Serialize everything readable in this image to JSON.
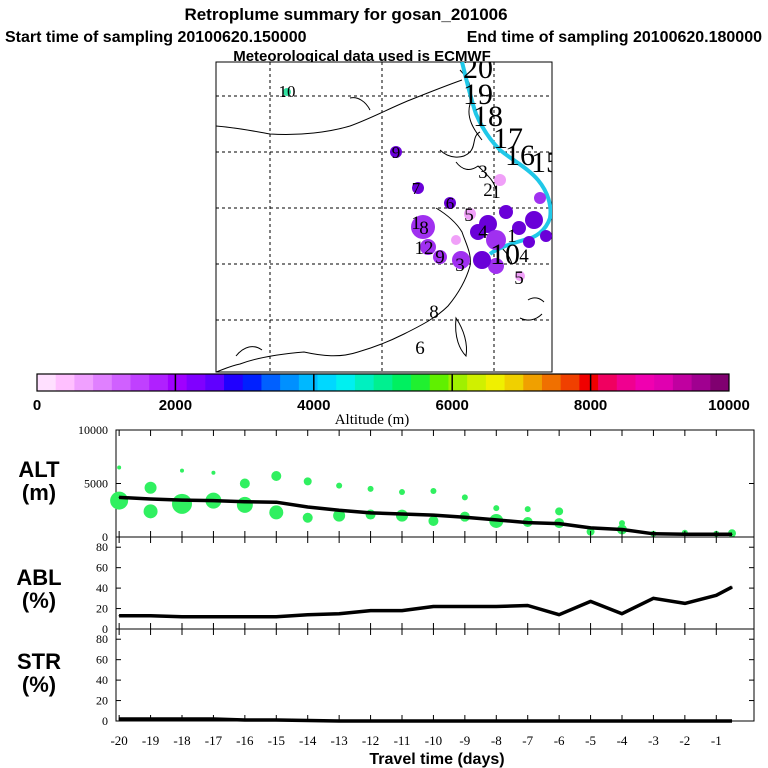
{
  "header": {
    "title": "Retroplume summary for gosan_201006",
    "start_label": "Start time of sampling 20100620.150000",
    "end_label": "End time of sampling 20100620.180000",
    "met_label": "Meteorological data used is ECMWF"
  },
  "colorbar": {
    "title": "Altitude (m)",
    "ticks": [
      "0",
      "2000",
      "4000",
      "6000",
      "8000",
      "10000"
    ],
    "range": [
      0,
      10000
    ],
    "colors": [
      "#ffe0ff",
      "#ffc0ff",
      "#f0a0ff",
      "#e080ff",
      "#d060ff",
      "#c040ff",
      "#b020ff",
      "#a000ff",
      "#8000ff",
      "#6000ff",
      "#2000ff",
      "#0020ff",
      "#0060ff",
      "#0090ff",
      "#00b8ff",
      "#00d8ff",
      "#00f0f0",
      "#00f0c0",
      "#00f090",
      "#00f060",
      "#20f030",
      "#60f000",
      "#a0f000",
      "#d0f000",
      "#f0f000",
      "#f0d000",
      "#f0a000",
      "#f07000",
      "#f04000",
      "#f00000",
      "#f00060",
      "#f00090",
      "#f000b0",
      "#e000b0",
      "#c000a0",
      "#a00090",
      "#800070"
    ]
  },
  "map": {
    "colors": {
      "trajectory": "#20c8e8",
      "low": "#a030f0",
      "mid": "#6a00d8",
      "pink": "#f0a0f8"
    },
    "labels": [
      {
        "text": "10",
        "color": "#000000",
        "size": "small"
      },
      {
        "text": "9",
        "color": "#000000",
        "size": "small"
      },
      {
        "text": "20",
        "color": "#000000",
        "size": "big"
      },
      {
        "text": "19",
        "color": "#000000",
        "size": "big"
      },
      {
        "text": "18",
        "color": "#000000",
        "size": "big"
      },
      {
        "text": "17",
        "color": "#000000",
        "size": "big"
      },
      {
        "text": "16",
        "color": "#000000",
        "size": "big"
      },
      {
        "text": "15",
        "color": "#000000",
        "size": "big"
      },
      {
        "text": "3",
        "color": "#000000",
        "size": "mid"
      },
      {
        "text": "2",
        "color": "#000000",
        "size": "mid"
      },
      {
        "text": "1",
        "color": "#000000",
        "size": "mid"
      },
      {
        "text": "7",
        "color": "#000000",
        "size": "small"
      },
      {
        "text": "6",
        "color": "#000000",
        "size": "small"
      },
      {
        "text": "5",
        "color": "#000000",
        "size": "mid"
      },
      {
        "text": "4",
        "color": "#000000",
        "size": "mid"
      },
      {
        "text": "1",
        "color": "#000000",
        "size": "mid"
      },
      {
        "text": "8",
        "color": "#000000",
        "size": "mid"
      },
      {
        "text": "1",
        "color": "#000000",
        "size": "mid"
      },
      {
        "text": "12",
        "color": "#000000",
        "size": "mid"
      },
      {
        "text": "9",
        "color": "#000000",
        "size": "mid"
      },
      {
        "text": "10",
        "color": "#000000",
        "size": "big"
      },
      {
        "text": "4",
        "color": "#000000",
        "size": "mid"
      },
      {
        "text": "5",
        "color": "#000000",
        "size": "mid"
      },
      {
        "text": "3",
        "color": "#000000",
        "size": "mid"
      },
      {
        "text": "8",
        "color": "#000000",
        "size": "mid"
      },
      {
        "text": "6",
        "color": "#000000",
        "size": "mid"
      }
    ]
  },
  "panels": {
    "alt": {
      "label": "ALT",
      "unit": "(m)",
      "ticks": [
        "10000",
        "5000",
        "0"
      ],
      "dot_color": "#30f060"
    },
    "abl": {
      "label": "ABL",
      "unit": "(%)",
      "ticks": [
        "80",
        "60",
        "40",
        "20",
        "0"
      ]
    },
    "str": {
      "label": "STR",
      "unit": "(%)",
      "ticks": [
        "80",
        "60",
        "40",
        "20",
        "0"
      ]
    }
  },
  "chart_data": {
    "type": "line",
    "xlabel": "Travel time (days)",
    "x_ticks": [
      "-20",
      "-19",
      "-18",
      "-17",
      "-16",
      "-15",
      "-14",
      "-13",
      "-12",
      "-11",
      "-10",
      "-9",
      "-8",
      "-7",
      "-6",
      "-5",
      "-4",
      "-3",
      "-2",
      "-1"
    ],
    "xlim": [
      -20.1,
      0.2
    ],
    "series": [
      {
        "name": "ALT",
        "ylim": [
          0,
          10000
        ],
        "x": [
          -20,
          -19,
          -18,
          -17,
          -16,
          -15,
          -14,
          -13,
          -12,
          -11,
          -10,
          -9,
          -8,
          -7,
          -6,
          -5,
          -4,
          -3,
          -2,
          -1,
          -0.5
        ],
        "values": [
          3700,
          3550,
          3450,
          3400,
          3300,
          3250,
          2800,
          2500,
          2250,
          2150,
          2050,
          1850,
          1600,
          1350,
          1250,
          850,
          700,
          300,
          250,
          250,
          250
        ]
      },
      {
        "name": "ABL",
        "ylim": [
          0,
          90
        ],
        "x": [
          -20,
          -19,
          -18,
          -17,
          -16,
          -15,
          -14,
          -13,
          -12,
          -11,
          -10,
          -9,
          -8,
          -7,
          -6,
          -5,
          -4,
          -3,
          -2,
          -1,
          -0.5
        ],
        "values": [
          13,
          13,
          12,
          12,
          12,
          12,
          14,
          15,
          18,
          18,
          22,
          22,
          22,
          23,
          14,
          27,
          15,
          30,
          25,
          33,
          41
        ]
      },
      {
        "name": "STR",
        "ylim": [
          0,
          90
        ],
        "x": [
          -20,
          -19,
          -18,
          -17,
          -16,
          -15,
          -14,
          -13,
          -12,
          -11,
          -10,
          -9,
          -8,
          -7,
          -6,
          -5,
          -4,
          -3,
          -2,
          -1,
          -0.5
        ],
        "values": [
          2,
          2,
          2,
          2,
          1,
          1,
          0.5,
          0,
          0,
          0,
          0,
          0,
          0,
          0,
          0,
          0,
          0,
          0,
          0,
          0,
          0
        ]
      }
    ],
    "alt_dots": {
      "x": [
        -20,
        -20,
        -19,
        -19,
        -18,
        -18,
        -17,
        -17,
        -16,
        -16,
        -15,
        -15,
        -14,
        -14,
        -13,
        -13,
        -12,
        -12,
        -11,
        -11,
        -10,
        -10,
        -9,
        -9,
        -8,
        -8,
        -7,
        -7,
        -6,
        -6,
        -5,
        -4,
        -4,
        -3,
        -2,
        -1,
        -0.5
      ],
      "y": [
        3400,
        6500,
        2400,
        4600,
        3100,
        6200,
        3400,
        6000,
        3000,
        5000,
        2300,
        5700,
        1800,
        5200,
        2000,
        4800,
        2100,
        4500,
        2000,
        4200,
        1500,
        4300,
        1900,
        3700,
        1500,
        2700,
        1400,
        2600,
        1300,
        2400,
        500,
        700,
        1300,
        300,
        400,
        300,
        350
      ],
      "r": [
        9,
        2,
        7,
        6,
        10,
        2,
        8,
        2,
        8,
        5,
        7,
        5,
        5,
        4,
        6,
        3,
        5,
        3,
        6,
        3,
        5,
        3,
        5,
        3,
        7,
        3,
        5,
        3,
        5,
        4,
        4,
        5,
        3,
        3,
        3,
        3,
        4
      ]
    }
  }
}
